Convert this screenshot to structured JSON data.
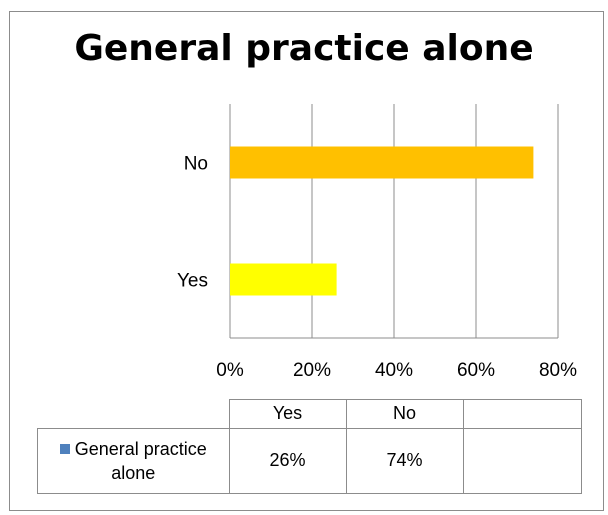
{
  "chart_data": {
    "type": "bar",
    "orientation": "horizontal",
    "title": "General practice alone",
    "categories": [
      "Yes",
      "No"
    ],
    "series": [
      {
        "name": "General practice alone",
        "values": [
          0.26,
          0.74
        ]
      }
    ],
    "bar_colors": {
      "Yes": "#ffff00",
      "No": "#ffc000"
    },
    "legend_key_color": "#4f81bd",
    "xlim": [
      0,
      0.8
    ],
    "x_ticks": [
      "0%",
      "20%",
      "40%",
      "60%",
      "80%"
    ],
    "grid": "vertical",
    "data_table": {
      "header": [
        "Yes",
        "No",
        ""
      ],
      "row_label": "General practice alone",
      "row_values": [
        "26%",
        "74%",
        ""
      ]
    }
  }
}
